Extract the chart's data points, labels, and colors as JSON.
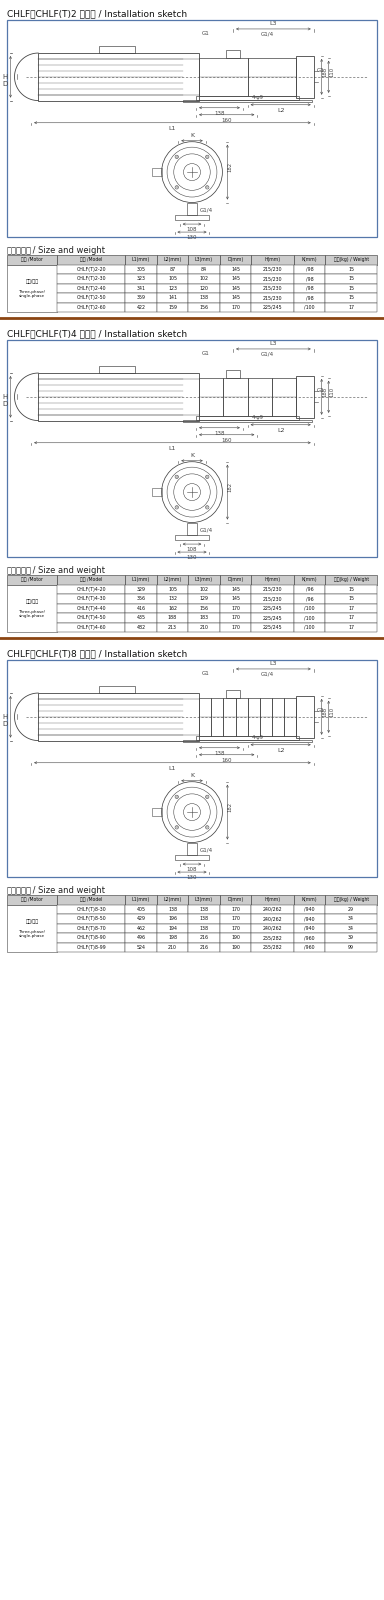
{
  "section1_title": "CHLF、CHLF(T)2 安装图 / Installation sketch",
  "section2_title": "CHLF、CHLF(T)4 安装图 / Installation sketch",
  "section3_title": "CHLF、CHLF(T)8 安装图 / Installation sketch",
  "size_weight_zh": "尺寸和重量",
  "size_weight_en": " / Size and weight",
  "table_headers": [
    "电机 /Motor",
    "型号 /Model",
    "L1(mm)",
    "L2(mm)",
    "L3(mm)",
    "D(mm)",
    "H(mm)",
    "K(mm)",
    "重量(kg) / Weight"
  ],
  "table1_motor_zh": "三相/单相",
  "table1_motor_en": "Three-phase/\nsingle-phase",
  "table1_data": [
    [
      "CHLF(T)2-20",
      "305",
      "87",
      "84",
      "145",
      "215/230",
      "/98",
      "15"
    ],
    [
      "CHLF(T)2-30",
      "323",
      "105",
      "102",
      "145",
      "215/230",
      "/98",
      "15"
    ],
    [
      "CHLF(T)2-40",
      "341",
      "123",
      "120",
      "145",
      "215/230",
      "/98",
      "15"
    ],
    [
      "CHLF(T)2-50",
      "359",
      "141",
      "138",
      "145",
      "215/230",
      "/98",
      "15"
    ],
    [
      "CHLF(T)2-60",
      "422",
      "159",
      "156",
      "170",
      "225/245",
      "/100",
      "17"
    ]
  ],
  "table2_motor_zh": "三相/单相",
  "table2_motor_en": "Three-phase/\nsingle-phase",
  "table2_data": [
    [
      "CHLF(T)4-20",
      "329",
      "105",
      "102",
      "145",
      "215/230",
      "/96",
      "15"
    ],
    [
      "CHLF(T)4-30",
      "356",
      "132",
      "129",
      "145",
      "215/230",
      "/96",
      "15"
    ],
    [
      "CHLF(T)4-40",
      "416",
      "162",
      "156",
      "170",
      "225/245",
      "/100",
      "17"
    ],
    [
      "CHLF(T)4-50",
      "435",
      "188",
      "183",
      "170",
      "225/245",
      "/100",
      "17"
    ],
    [
      "CHLF(T)4-60",
      "482",
      "213",
      "210",
      "170",
      "225/245",
      "/100",
      "17"
    ]
  ],
  "table3_motor_zh": "三相/单相",
  "table3_motor_en": "Three-phase/\nsingle-phase",
  "table3_data": [
    [
      "CHLF(T)8-30",
      "405",
      "138",
      "138",
      "170",
      "240/262",
      "/940",
      "29"
    ],
    [
      "CHLF(T)8-50",
      "429",
      "196",
      "138",
      "170",
      "240/262",
      "/940",
      "34"
    ],
    [
      "CHLF(T)8-70",
      "462",
      "194",
      "138",
      "170",
      "240/262",
      "/940",
      "34"
    ],
    [
      "CHLF(T)8-90",
      "496",
      "198",
      "216",
      "190",
      "255/282",
      "/960",
      "39"
    ],
    [
      "CHLF(T)8-99",
      "524",
      "210",
      "216",
      "190",
      "255/282",
      "/960",
      "99"
    ]
  ],
  "separator_color": "#8B4513",
  "border_color": "#5577aa",
  "line_color": "#444444",
  "bg_color": "#ffffff",
  "header_bg": "#cccccc"
}
